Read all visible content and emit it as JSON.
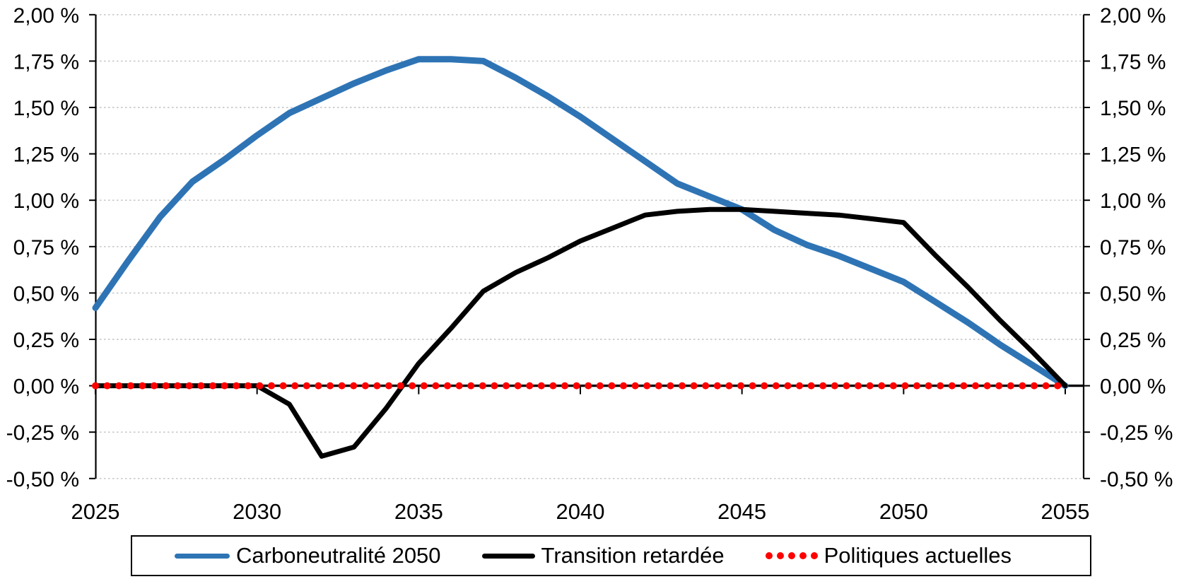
{
  "chart_data": {
    "type": "line",
    "title": "",
    "x_label": "",
    "y_label": "",
    "x": [
      2025,
      2026,
      2027,
      2028,
      2029,
      2030,
      2031,
      2032,
      2033,
      2034,
      2035,
      2036,
      2037,
      2038,
      2039,
      2040,
      2041,
      2042,
      2043,
      2044,
      2045,
      2046,
      2047,
      2048,
      2049,
      2050,
      2051,
      2052,
      2053,
      2054,
      2055
    ],
    "series": [
      {
        "name": "Carboneutralité 2050",
        "color": "#2E74B5",
        "style": "solid",
        "stroke_width": 9,
        "values": [
          0.42,
          0.67,
          0.91,
          1.1,
          1.22,
          1.35,
          1.47,
          1.55,
          1.63,
          1.7,
          1.76,
          1.76,
          1.75,
          1.66,
          1.56,
          1.45,
          1.33,
          1.21,
          1.09,
          1.02,
          0.95,
          0.84,
          0.76,
          0.7,
          0.63,
          0.56,
          0.45,
          0.34,
          0.22,
          0.11,
          0.0
        ]
      },
      {
        "name": "Transition retardée",
        "color": "#000000",
        "style": "solid",
        "stroke_width": 7,
        "values": [
          0.0,
          0.0,
          0.0,
          0.0,
          0.0,
          0.0,
          -0.1,
          -0.38,
          -0.33,
          -0.12,
          0.12,
          0.31,
          0.51,
          0.61,
          0.69,
          0.78,
          0.85,
          0.92,
          0.94,
          0.95,
          0.95,
          0.94,
          0.93,
          0.92,
          0.9,
          0.88,
          0.7,
          0.53,
          0.35,
          0.18,
          0.0
        ]
      },
      {
        "name": "Politiques actuelles",
        "color": "#FF0000",
        "style": "dotted",
        "stroke_width": 10,
        "values": [
          0.0,
          0.0,
          0.0,
          0.0,
          0.0,
          0.0,
          0.0,
          0.0,
          0.0,
          0.0,
          0.0,
          0.0,
          0.0,
          0.0,
          0.0,
          0.0,
          0.0,
          0.0,
          0.0,
          0.0,
          0.0,
          0.0,
          0.0,
          0.0,
          0.0,
          0.0,
          0.0,
          0.0,
          0.0,
          0.0,
          0.0
        ]
      }
    ],
    "y_axis": {
      "min": -0.5,
      "max": 2.0,
      "step": 0.25,
      "format": "percent_fr",
      "sides": "both",
      "tick_labels": [
        "2,00 %",
        "1,75 %",
        "1,50 %",
        "1,25 %",
        "1,00 %",
        "0,75 %",
        "0,50 %",
        "0,25 %",
        "0,00 %",
        "-0,25 %",
        "-0,50 %"
      ]
    },
    "x_axis": {
      "tick_years": [
        2025,
        2030,
        2035,
        2040,
        2045,
        2050,
        2055
      ],
      "tick_labels": [
        "2025",
        "2030",
        "2035",
        "2040",
        "2045",
        "2050",
        "2055"
      ]
    },
    "grid": true,
    "gridline_color": "#C0C0C0",
    "axis_color": "#000000",
    "background_color": "#FFFFFF",
    "legend_position": "bottom"
  },
  "legend": {
    "items": [
      {
        "label": "Carboneutralité 2050"
      },
      {
        "label": "Transition retardée"
      },
      {
        "label": "Politiques actuelles"
      }
    ]
  }
}
